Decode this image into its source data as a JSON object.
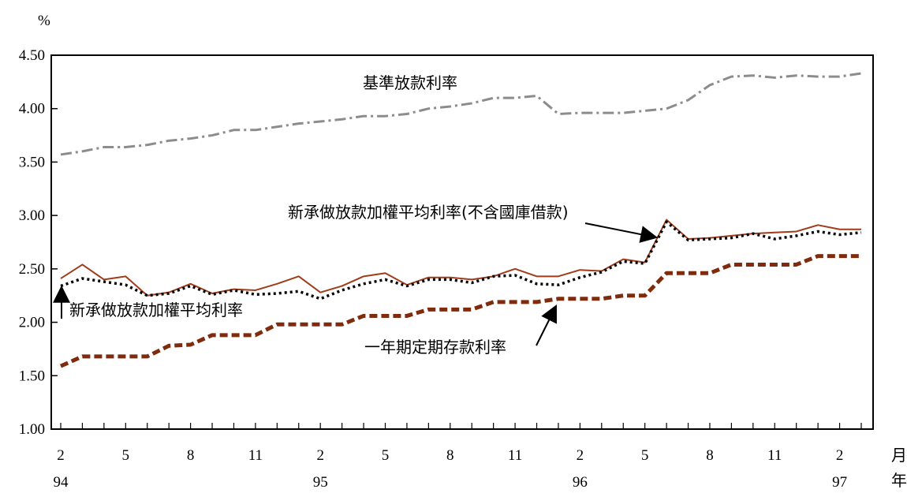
{
  "chart_data": {
    "type": "line",
    "ylabel": "%",
    "ylim": [
      1.0,
      4.5
    ],
    "yticks": [
      "1.00",
      "1.50",
      "2.00",
      "2.50",
      "3.00",
      "3.50",
      "4.00",
      "4.50"
    ],
    "xticks": [
      {
        "index": 0,
        "label": "2"
      },
      {
        "index": 3,
        "label": "5"
      },
      {
        "index": 6,
        "label": "8"
      },
      {
        "index": 9,
        "label": "11"
      },
      {
        "index": 12,
        "label": "2"
      },
      {
        "index": 15,
        "label": "5"
      },
      {
        "index": 18,
        "label": "8"
      },
      {
        "index": 21,
        "label": "11"
      },
      {
        "index": 24,
        "label": "2"
      },
      {
        "index": 27,
        "label": "5"
      },
      {
        "index": 30,
        "label": "8"
      },
      {
        "index": 33,
        "label": "11"
      },
      {
        "index": 36,
        "label": "2"
      }
    ],
    "years": [
      {
        "index": 0,
        "label": "94"
      },
      {
        "index": 12,
        "label": "95"
      },
      {
        "index": 24,
        "label": "96"
      },
      {
        "index": 36,
        "label": "97"
      }
    ],
    "month_unit": "月",
    "year_unit": "年",
    "series": [
      {
        "name": "基準放款利率",
        "color": "#8c8c8c",
        "style": "dashdot",
        "values": [
          3.57,
          3.6,
          3.64,
          3.64,
          3.66,
          3.7,
          3.72,
          3.75,
          3.8,
          3.8,
          3.83,
          3.86,
          3.88,
          3.9,
          3.93,
          3.93,
          3.95,
          4.0,
          4.02,
          4.05,
          4.1,
          4.1,
          4.12,
          3.95,
          3.96,
          3.96,
          3.96,
          3.98,
          4.0,
          4.08,
          4.22,
          4.3,
          4.31,
          4.29,
          4.31,
          4.3,
          4.3,
          4.33
        ]
      },
      {
        "name": "新承做放款加權平均利率(不含國庫借款)",
        "color": "#a03c19",
        "style": "solid",
        "values": [
          2.41,
          2.54,
          2.4,
          2.43,
          2.25,
          2.28,
          2.36,
          2.27,
          2.31,
          2.3,
          2.36,
          2.43,
          2.28,
          2.34,
          2.43,
          2.46,
          2.35,
          2.42,
          2.42,
          2.4,
          2.43,
          2.5,
          2.43,
          2.43,
          2.49,
          2.48,
          2.59,
          2.56,
          2.96,
          2.78,
          2.79,
          2.81,
          2.83,
          2.84,
          2.85,
          2.91,
          2.87,
          2.87
        ]
      },
      {
        "name": "新承做放款加權平均利率",
        "color": "#000000",
        "style": "dotted",
        "values": [
          2.34,
          2.41,
          2.38,
          2.35,
          2.25,
          2.27,
          2.34,
          2.26,
          2.3,
          2.26,
          2.27,
          2.29,
          2.22,
          2.3,
          2.36,
          2.4,
          2.34,
          2.4,
          2.4,
          2.37,
          2.43,
          2.44,
          2.36,
          2.35,
          2.42,
          2.47,
          2.57,
          2.55,
          2.94,
          2.77,
          2.78,
          2.79,
          2.83,
          2.78,
          2.81,
          2.85,
          2.82,
          2.84
        ]
      },
      {
        "name": "一年期定期存款利率",
        "color": "#7f2c0e",
        "style": "dashed",
        "values": [
          1.59,
          1.68,
          1.68,
          1.68,
          1.68,
          1.78,
          1.79,
          1.88,
          1.88,
          1.88,
          1.98,
          1.98,
          1.98,
          1.98,
          2.06,
          2.06,
          2.06,
          2.12,
          2.12,
          2.12,
          2.19,
          2.19,
          2.19,
          2.22,
          2.22,
          2.22,
          2.25,
          2.25,
          2.46,
          2.46,
          2.46,
          2.54,
          2.54,
          2.54,
          2.54,
          2.62,
          2.62,
          2.62
        ]
      }
    ],
    "annotations": [
      {
        "text": "基準放款利率",
        "series": 0
      },
      {
        "text": "新承做放款加權平均利率(不含國庫借款)",
        "series": 1
      },
      {
        "text": "新承做放款加權平均利率",
        "series": 2
      },
      {
        "text": "一年期定期存款利率",
        "series": 3
      }
    ]
  }
}
